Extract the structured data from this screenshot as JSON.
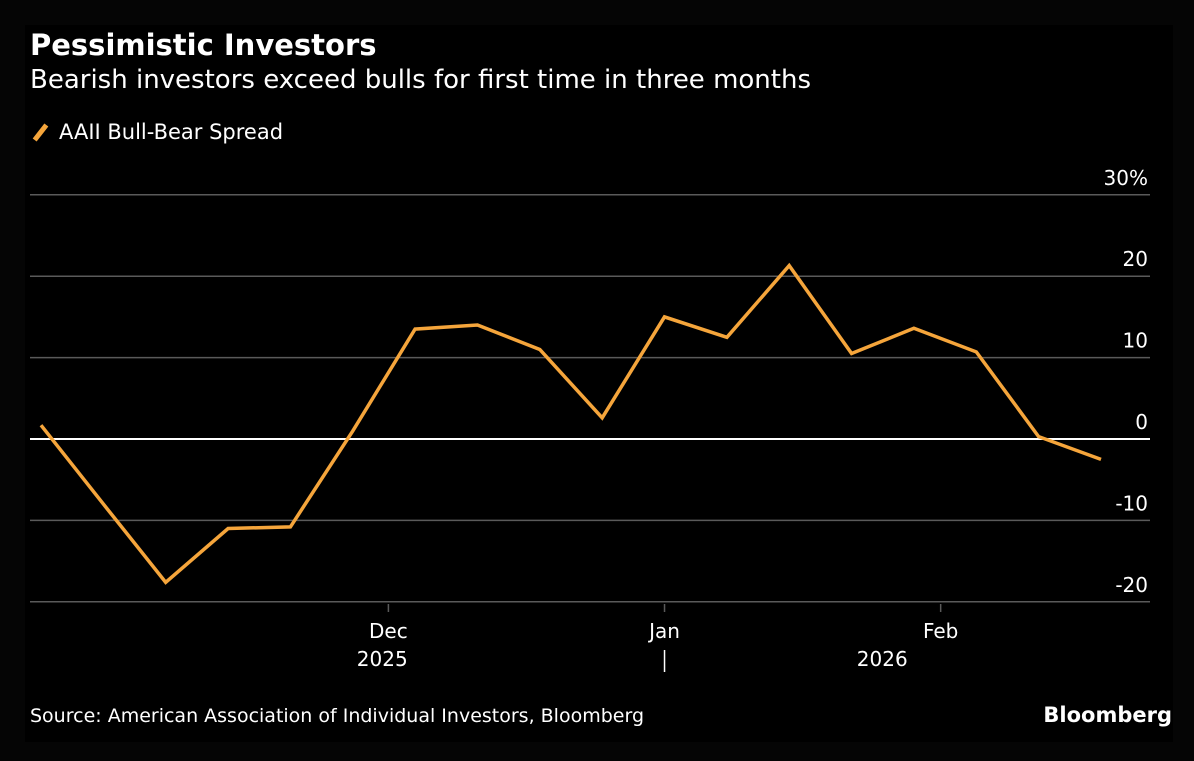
{
  "source": "Source: American Association of Individual Investors, Bloomberg",
  "brand": "Bloomberg",
  "colors": {
    "background": "#000000",
    "line": "#f5a53b",
    "grid": "#5a5a5a",
    "zero_line": "#ffffff",
    "text": "#ffffff"
  },
  "chart_data": {
    "type": "line",
    "title": "Pessimistic Investors",
    "subtitle": "Bearish investors exceed bulls for first time in three months",
    "legend": "AAII Bull-Bear Spread",
    "legend_position": "top-left",
    "grid": true,
    "ylim": [
      -20,
      30
    ],
    "y_ticks": [
      30,
      20,
      10,
      0,
      -10,
      -20
    ],
    "y_tick_labels": [
      "30%",
      "20",
      "10",
      "0",
      "-10",
      "-20"
    ],
    "x_ticks": [
      {
        "date": "2025-12-01",
        "month": "Dec",
        "year": "2025"
      },
      {
        "date": "2026-01-01",
        "month": "Jan",
        "year": ""
      },
      {
        "date": "2026-02-01",
        "month": "Feb",
        "year": "2026"
      }
    ],
    "year_divider": "2026-01-01",
    "series": [
      {
        "name": "AAII Bull-Bear Spread",
        "x": [
          "2025-10-23",
          "2025-10-30",
          "2025-11-06",
          "2025-11-13",
          "2025-11-20",
          "2025-11-27",
          "2025-12-04",
          "2025-12-11",
          "2025-12-18",
          "2025-12-25",
          "2026-01-01",
          "2026-01-08",
          "2026-01-15",
          "2026-01-22",
          "2026-01-29",
          "2026-02-05",
          "2026-02-12",
          "2026-02-19"
        ],
        "values": [
          1.7,
          -8.0,
          -17.6,
          -11.0,
          -10.8,
          1.0,
          13.5,
          14.0,
          11.0,
          2.6,
          15.0,
          12.5,
          21.3,
          10.5,
          13.6,
          10.7,
          0.3,
          -2.5
        ]
      }
    ]
  }
}
